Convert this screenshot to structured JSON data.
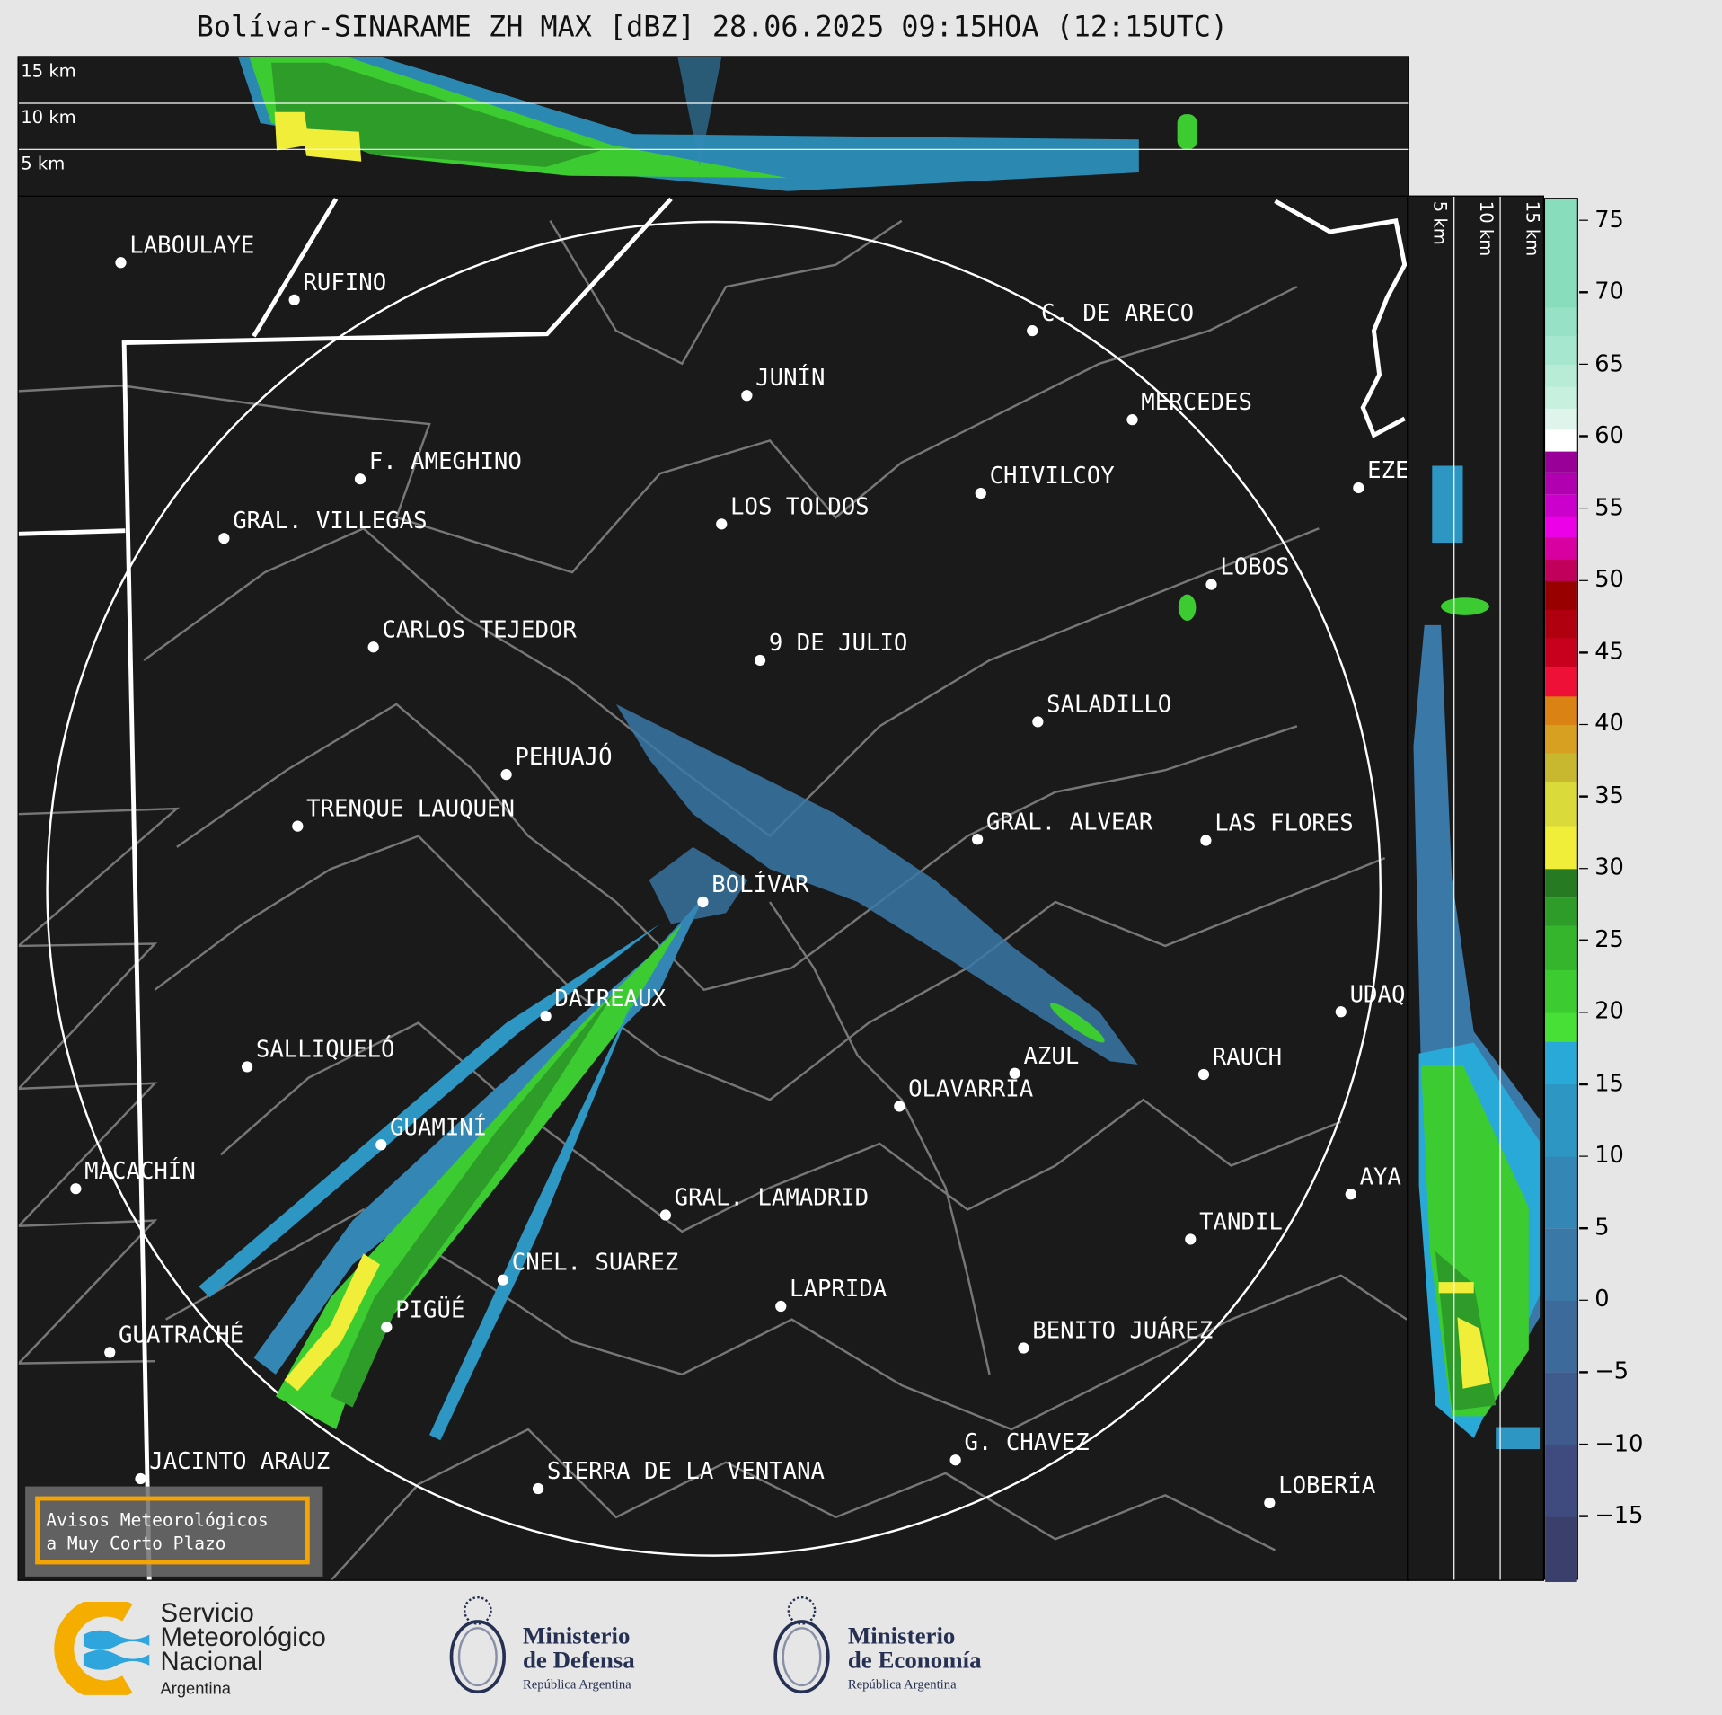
{
  "title": "Bolívar-SINARAME ZH MAX [dBZ] 28.06.2025 09:15HOA (12:15UTC)",
  "top_panel": {
    "height_labels": [
      "15 km",
      "10 km",
      "5 km"
    ]
  },
  "side_panel": {
    "height_labels": [
      "5 km",
      "10 km",
      "15 km"
    ]
  },
  "cities": [
    "LABOULAYE",
    "RUFINO",
    "C. DE ARECO",
    "JUNÍN",
    "MERCEDES",
    "F. AMEGHINO",
    "CHIVILCOY",
    "EZE",
    "LOS TOLDOS",
    "GRAL. VILLEGAS",
    "LOBOS",
    "CARLOS TEJEDOR",
    "9 DE JULIO",
    "SALADILLO",
    "PEHUAJÓ",
    "TRENQUE LAUQUEN",
    "GRAL. ALVEAR",
    "LAS FLORES",
    "BOLÍVAR",
    "DAIREAUX",
    "UDAQ",
    "SALLIQUELÓ",
    "AZUL",
    "RAUCH",
    "OLAVARRÍA",
    "GUAMINÍ",
    "MACACHÍN",
    "AYA",
    "GRAL. LAMADRID",
    "TANDIL",
    "CNEL. SUAREZ",
    "LAPRIDA",
    "PIGÜÉ",
    "BENITO JUÁREZ",
    "GUATRACHÉ",
    "G. CHAVEZ",
    "JACINTO ARAUZ",
    "SIERRA DE LA VENTANA",
    "LOBERÍA"
  ],
  "colorbar": {
    "unit": "dBZ",
    "range": [
      -19.5,
      76.5
    ],
    "ticks": [
      75,
      70,
      65,
      60,
      55,
      50,
      45,
      40,
      35,
      30,
      25,
      20,
      15,
      10,
      5,
      0,
      -5,
      -10,
      -15
    ],
    "levels": [
      [
        -19.5,
        "#3b3f6b"
      ],
      [
        -15,
        "#3f4a7e"
      ],
      [
        -10,
        "#3f5a8c"
      ],
      [
        -5,
        "#3c6a9a"
      ],
      [
        0,
        "#3a78a8"
      ],
      [
        5,
        "#3487b5"
      ],
      [
        10,
        "#2e96c2"
      ],
      [
        15,
        "#29a9d8"
      ],
      [
        18,
        "#47e036"
      ],
      [
        20,
        "#3ccc32"
      ],
      [
        23,
        "#35b52c"
      ],
      [
        26,
        "#2e9c28"
      ],
      [
        28,
        "#257a22"
      ],
      [
        30,
        "#f1ee3a"
      ],
      [
        33,
        "#dada3a"
      ],
      [
        36,
        "#c8b830"
      ],
      [
        38,
        "#d7a020"
      ],
      [
        40,
        "#db8214"
      ],
      [
        42,
        "#ee1036"
      ],
      [
        44,
        "#c8001e"
      ],
      [
        46,
        "#b00010"
      ],
      [
        48,
        "#980000"
      ],
      [
        50,
        "#c0005a"
      ],
      [
        51.5,
        "#d800a0"
      ],
      [
        53,
        "#ec00e8"
      ],
      [
        54.5,
        "#cc00cc"
      ],
      [
        56,
        "#b000b0"
      ],
      [
        57.5,
        "#980098"
      ],
      [
        59,
        "#ffffff"
      ],
      [
        60.5,
        "#dff4ea"
      ],
      [
        62,
        "#c8f0df"
      ],
      [
        63.5,
        "#b8ecd6"
      ],
      [
        65,
        "#a6e8cf"
      ],
      [
        67,
        "#97e2c6"
      ],
      [
        69,
        "#88ddbd"
      ]
    ]
  },
  "warning_box": {
    "line1": "Avisos Meteorológicos",
    "line2": "a Muy Corto Plazo",
    "border_color": "#f5a300"
  },
  "logos": {
    "smn": {
      "line1": "Servicio",
      "line2": "Meteorológico",
      "line3": "Nacional",
      "line4": "Argentina"
    },
    "defensa": {
      "line1": "Ministerio",
      "line2": "de Defensa",
      "line3": "República Argentina"
    },
    "economia": {
      "line1": "Ministerio",
      "line2": "de Economía",
      "line3": "República Argentina"
    }
  }
}
